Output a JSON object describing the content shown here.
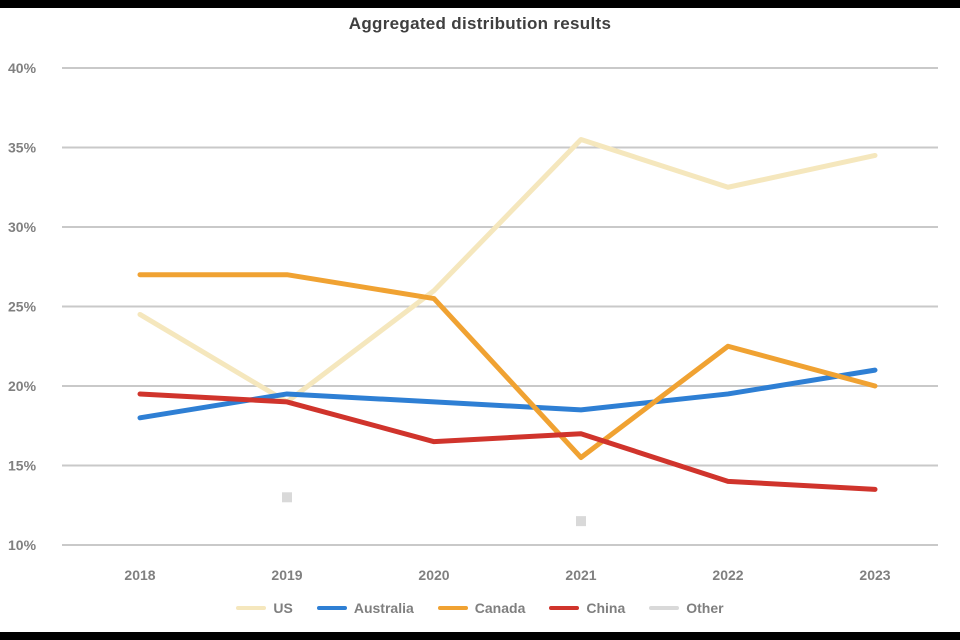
{
  "chart_data": {
    "type": "line",
    "title": "Aggregated distribution results",
    "categories": [
      "2018",
      "2019",
      "2020",
      "2021",
      "2022",
      "2023"
    ],
    "y_ticks": [
      40,
      35,
      30,
      25,
      20,
      15,
      10
    ],
    "y_tick_labels": [
      "40%",
      "35%",
      "30%",
      "25%",
      "20%",
      "15%",
      "10%"
    ],
    "ylim": [
      10,
      40
    ],
    "grid": "horizontal",
    "legend_position": "bottom",
    "colors": {
      "grid": "#c9c9c9",
      "tick_text": "#808080",
      "title_text": "#3f3f3f"
    },
    "series": [
      {
        "name": "US",
        "color": "#f5e7bd",
        "values": [
          24.5,
          19,
          26,
          35.5,
          32.5,
          34.5
        ]
      },
      {
        "name": "Australia",
        "color": "#2e7fd4",
        "values": [
          18,
          19.5,
          19,
          18.5,
          19.5,
          21
        ]
      },
      {
        "name": "Canada",
        "color": "#f0a232",
        "values": [
          27,
          27,
          25.5,
          15.5,
          22.5,
          20
        ]
      },
      {
        "name": "China",
        "color": "#d0342c",
        "values": [
          19.5,
          19,
          16.5,
          17,
          14,
          13.5
        ]
      },
      {
        "name": "Other",
        "color": "#d9d9d9",
        "values": [
          null,
          13,
          null,
          11.5,
          null,
          null
        ],
        "markers_only": true
      }
    ]
  }
}
